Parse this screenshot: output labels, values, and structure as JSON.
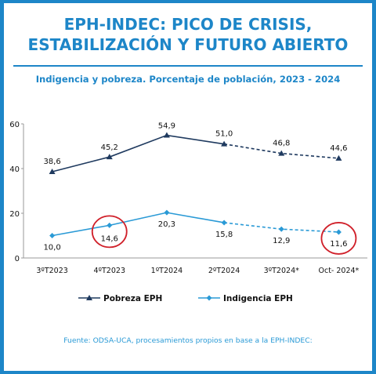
{
  "header": {
    "title_line1": "EPH-INDEC: PICO DE CRISIS,",
    "title_line2": "ESTABILIZACIÓN Y FUTURO ABIERTO"
  },
  "chart_data": {
    "type": "line",
    "title": "Indigencia y pobreza. Porcentaje de población, 2023 - 2024",
    "categories": [
      "3ºT2023",
      "4ºT2023",
      "1ºT2024",
      "2ºT2024",
      "3ºT2024*",
      "Oct- 2024*"
    ],
    "ylim": [
      0,
      60
    ],
    "yticks": [
      0,
      20,
      40,
      60
    ],
    "grid": false,
    "legend": "bottom",
    "series": [
      {
        "name": "Pobreza EPH",
        "values": [
          38.6,
          45.2,
          54.9,
          51.0,
          46.8,
          44.6
        ],
        "labels": [
          "38,6",
          "45,2",
          "54,9",
          "51,0",
          "46,8",
          "44,6"
        ],
        "color": "#1f3a5f",
        "marker": "triangle",
        "dashed_from_index": 3
      },
      {
        "name": "Indigencia EPH",
        "values": [
          10.0,
          14.6,
          20.3,
          15.8,
          12.9,
          11.6
        ],
        "labels": [
          "10,0",
          "14,6",
          "20,3",
          "15,8",
          "12,9",
          "11,6"
        ],
        "color": "#2a9ad6",
        "marker": "diamond",
        "dashed_from_index": 3
      }
    ],
    "highlighted_points": [
      {
        "series": 1,
        "index": 1
      },
      {
        "series": 1,
        "index": 5
      }
    ],
    "highlight_color": "#d0202a"
  },
  "footer": {
    "source": "Fuente: ODSA-UCA, procesamientos propios en base a la EPH-INDEC:"
  }
}
